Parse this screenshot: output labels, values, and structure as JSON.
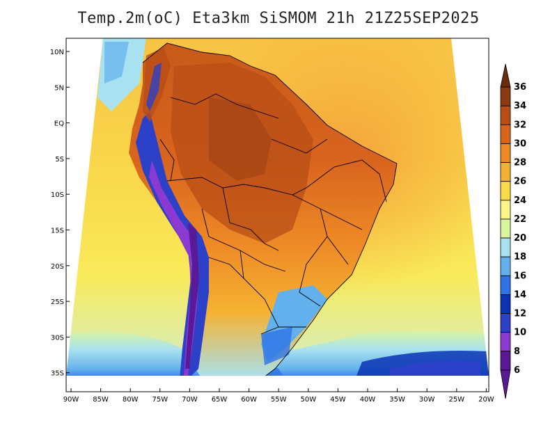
{
  "title": "Temp.2m(oC) Eta3km SiSMOM 21h 21Z25SEP2025",
  "lat_ticks": [
    "10N",
    "5N",
    "EQ",
    "5S",
    "10S",
    "15S",
    "20S",
    "25S",
    "30S",
    "35S"
  ],
  "lon_ticks": [
    "90W",
    "85W",
    "80W",
    "75W",
    "70W",
    "65W",
    "60W",
    "55W",
    "50W",
    "45W",
    "40W",
    "35W",
    "30W",
    "25W",
    "20W"
  ],
  "colorbar": {
    "labels": [
      "36",
      "34",
      "32",
      "30",
      "28",
      "26",
      "24",
      "22",
      "20",
      "18",
      "16",
      "14",
      "12",
      "10",
      "8",
      "6"
    ],
    "colors": [
      "#6b2c0c",
      "#8c3a12",
      "#b84e16",
      "#d8641e",
      "#ee8a26",
      "#f5b232",
      "#f9dc48",
      "#fbf486",
      "#d8f5a2",
      "#a8e2f0",
      "#62b0ec",
      "#2f74e6",
      "#0a34b4",
      "#2c40c8",
      "#8a3ad0",
      "#5a1a98"
    ]
  },
  "temperature_colors": {
    "ocean_warm": "#f9d549",
    "ocean_hot": "#f5a43a",
    "land_hot": "#d8641e",
    "land_very_hot": "#b84e16",
    "cool_south": "#a8e2f0",
    "andes_cold": "#2c40c8",
    "andes_coldest": "#8a3ad0"
  }
}
